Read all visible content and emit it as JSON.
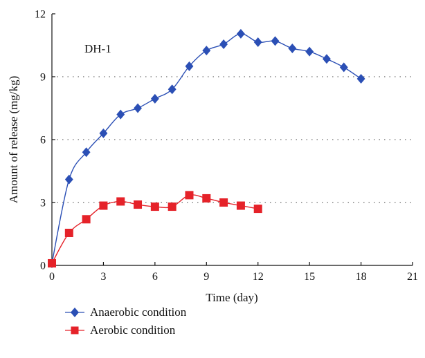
{
  "chart_data": {
    "type": "line",
    "annotation": "DH-1",
    "xlabel": "Time (day)",
    "ylabel": "Amount of release (mg/kg)",
    "xlim": [
      0,
      21
    ],
    "ylim": [
      0,
      12
    ],
    "xticks": [
      0,
      3,
      6,
      9,
      12,
      15,
      18,
      21
    ],
    "yticks": [
      0,
      3,
      6,
      9,
      12
    ],
    "grid": "horizontal dotted at 3, 6, 9",
    "legend_position": "bottom",
    "series": [
      {
        "name": "Anaerobic condition",
        "color": "#2b4fb5",
        "marker": "diamond",
        "x": [
          0,
          1,
          2,
          3,
          4,
          5,
          6,
          7,
          8,
          9,
          10,
          11,
          12,
          13,
          14,
          15,
          16,
          17,
          18
        ],
        "y": [
          0.1,
          4.1,
          5.4,
          6.3,
          7.2,
          7.5,
          7.95,
          8.4,
          9.5,
          10.25,
          10.55,
          11.05,
          10.65,
          10.7,
          10.35,
          10.2,
          9.85,
          9.45,
          8.9
        ]
      },
      {
        "name": "Aerobic condition",
        "color": "#e52229",
        "marker": "square",
        "x": [
          0,
          1,
          2,
          3,
          4,
          5,
          6,
          7,
          8,
          9,
          10,
          11,
          12
        ],
        "y": [
          0.1,
          1.55,
          2.2,
          2.85,
          3.05,
          2.9,
          2.8,
          2.8,
          3.35,
          3.2,
          3.0,
          2.85,
          2.7
        ]
      }
    ]
  }
}
